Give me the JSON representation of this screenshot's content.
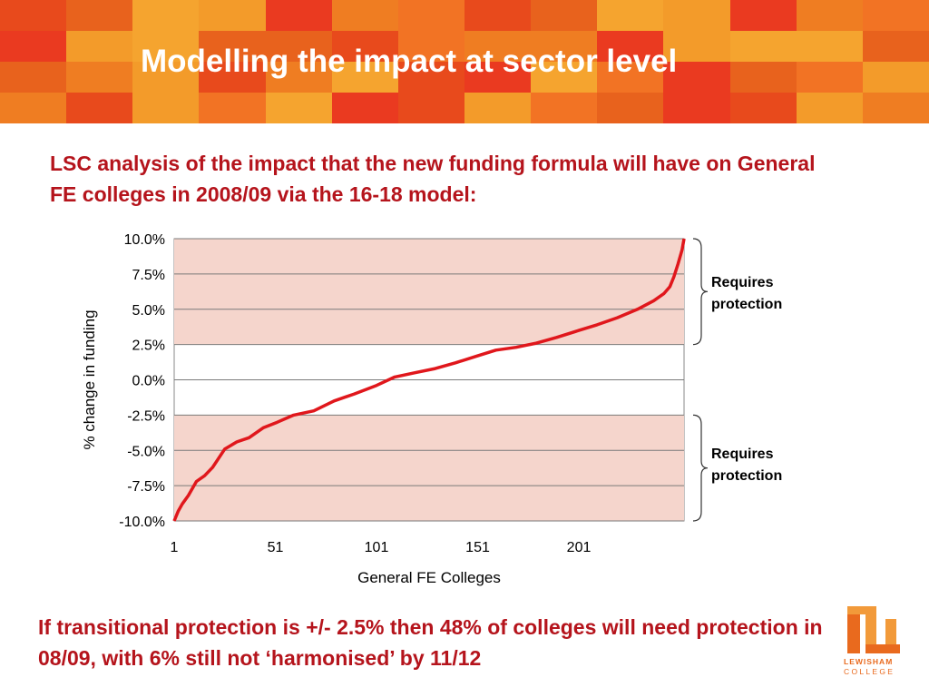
{
  "slide": {
    "title": "Modelling the impact at sector level",
    "intro": "LSC analysis of the impact that the new funding formula will have on General FE colleges in 2008/09 via the 16-18 model:",
    "conclusion": "If transitional protection is +/- 2.5% then 48% of colleges will need protection in 08/09, with 6% still not ‘harmonised’ by 11/12"
  },
  "annotations": {
    "top": "Requires protection",
    "bottom": "Requires protection"
  },
  "logo": {
    "name": "LEWISHAM",
    "sub": "COLLEGE",
    "color": "#e96a1e"
  },
  "colors": {
    "line": "#e0171c",
    "shade": "#f5d5cc",
    "accent": "#b5141c",
    "banner": [
      "#e84a1c",
      "#ef7d22",
      "#f39b2a",
      "#e8621d",
      "#f27324",
      "#ea3a20",
      "#f5a42f"
    ]
  },
  "chart_data": {
    "type": "line",
    "xlabel": "General FE Colleges",
    "ylabel": "% change in funding",
    "ylim": [
      -10,
      10
    ],
    "xlim": [
      1,
      253
    ],
    "x_ticks": [
      1,
      51,
      101,
      151,
      201
    ],
    "y_ticks": [
      "10.0%",
      "7.5%",
      "5.0%",
      "2.5%",
      "0.0%",
      "-2.5%",
      "-5.0%",
      "-7.5%",
      "-10.0%"
    ],
    "shaded_bands": [
      [
        2.5,
        10
      ],
      [
        -10,
        -2.5
      ]
    ],
    "grid": true,
    "series": [
      {
        "x": [
          1,
          3,
          5,
          8,
          12,
          16,
          20,
          26,
          32,
          38,
          45,
          52,
          60,
          70,
          80,
          90,
          101,
          110,
          120,
          130,
          140,
          151,
          160,
          170,
          180,
          190,
          201,
          210,
          220,
          230,
          238,
          243,
          246,
          248,
          250,
          252,
          253
        ],
        "y": [
          -10.0,
          -9.3,
          -8.8,
          -8.2,
          -7.2,
          -6.8,
          -6.2,
          -4.9,
          -4.4,
          -4.1,
          -3.4,
          -3.0,
          -2.5,
          -2.2,
          -1.5,
          -1.0,
          -0.4,
          0.2,
          0.5,
          0.8,
          1.2,
          1.7,
          2.1,
          2.3,
          2.6,
          3.0,
          3.5,
          3.9,
          4.4,
          5.0,
          5.6,
          6.1,
          6.6,
          7.3,
          8.2,
          9.2,
          10.0
        ]
      }
    ]
  }
}
